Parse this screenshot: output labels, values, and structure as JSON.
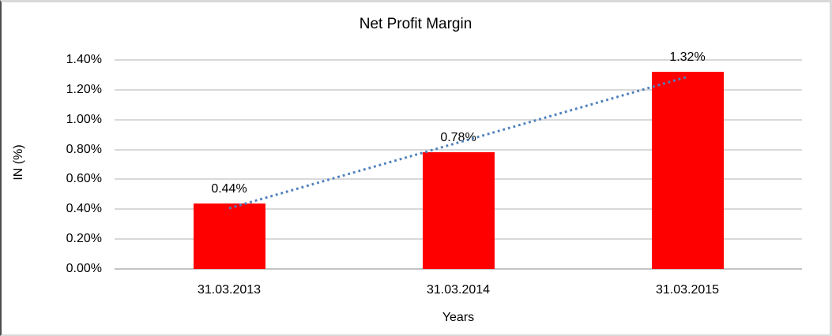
{
  "frame": {
    "background": "#FFFFFF",
    "border_dark": "#4D4D4D",
    "border_light": "#D9D9D9"
  },
  "chart_data": {
    "type": "bar",
    "title": "Net Profit Margin",
    "xlabel": "Years",
    "ylabel": "IN (%)",
    "categories": [
      "31.03.2013",
      "31.03.2014",
      "31.03.2015"
    ],
    "values": [
      0.44,
      0.78,
      1.32
    ],
    "data_labels": [
      "0.44%",
      "0.78%",
      "1.32%"
    ],
    "yticks": [
      0.0,
      0.2,
      0.4,
      0.6,
      0.8,
      1.0,
      1.2,
      1.4
    ],
    "ytick_labels": [
      "0.00%",
      "0.20%",
      "0.40%",
      "0.60%",
      "0.80%",
      "1.00%",
      "1.20%",
      "1.40%"
    ],
    "ylim": [
      0,
      1.4
    ],
    "grid": "horizontal",
    "legend": "none",
    "bar_color": "#FF0000",
    "gridline_color": "#D9D9D9",
    "axis_line_color": "#C3C3C3",
    "trendline": {
      "type": "linear",
      "style": "dotted",
      "color": "#4F81BD"
    }
  }
}
